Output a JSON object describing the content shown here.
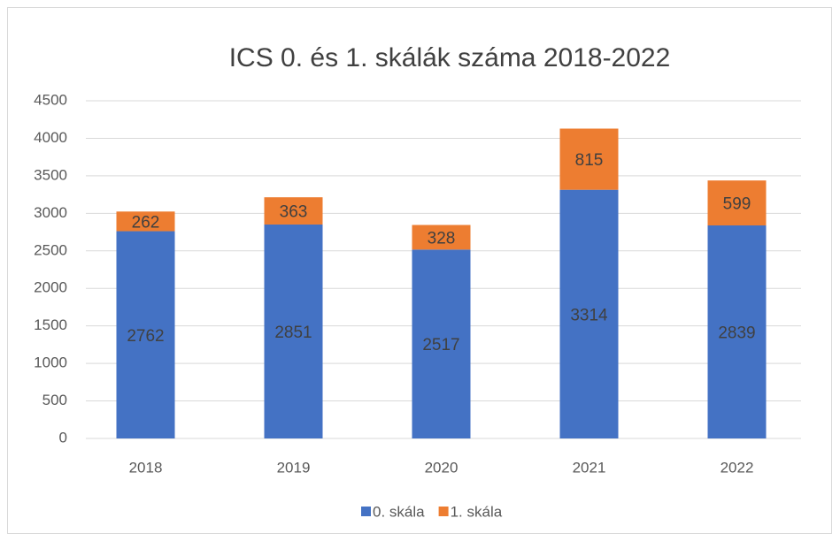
{
  "chart_data": {
    "type": "bar",
    "stacked": true,
    "title": "ICS 0. és 1. skálák száma 2018-2022",
    "categories": [
      "2018",
      "2019",
      "2020",
      "2021",
      "2022"
    ],
    "series": [
      {
        "name": "0. skála",
        "color": "#4472c4",
        "values": [
          2762,
          2851,
          2517,
          3314,
          2839
        ]
      },
      {
        "name": "1. skála",
        "color": "#ed7d31",
        "values": [
          262,
          363,
          328,
          815,
          599
        ]
      }
    ],
    "ylim": [
      0,
      4500
    ],
    "yticks": [
      0,
      500,
      1000,
      1500,
      2000,
      2500,
      3000,
      3500,
      4000,
      4500
    ],
    "grid": true,
    "legend": "bottom",
    "data_labels": true
  }
}
